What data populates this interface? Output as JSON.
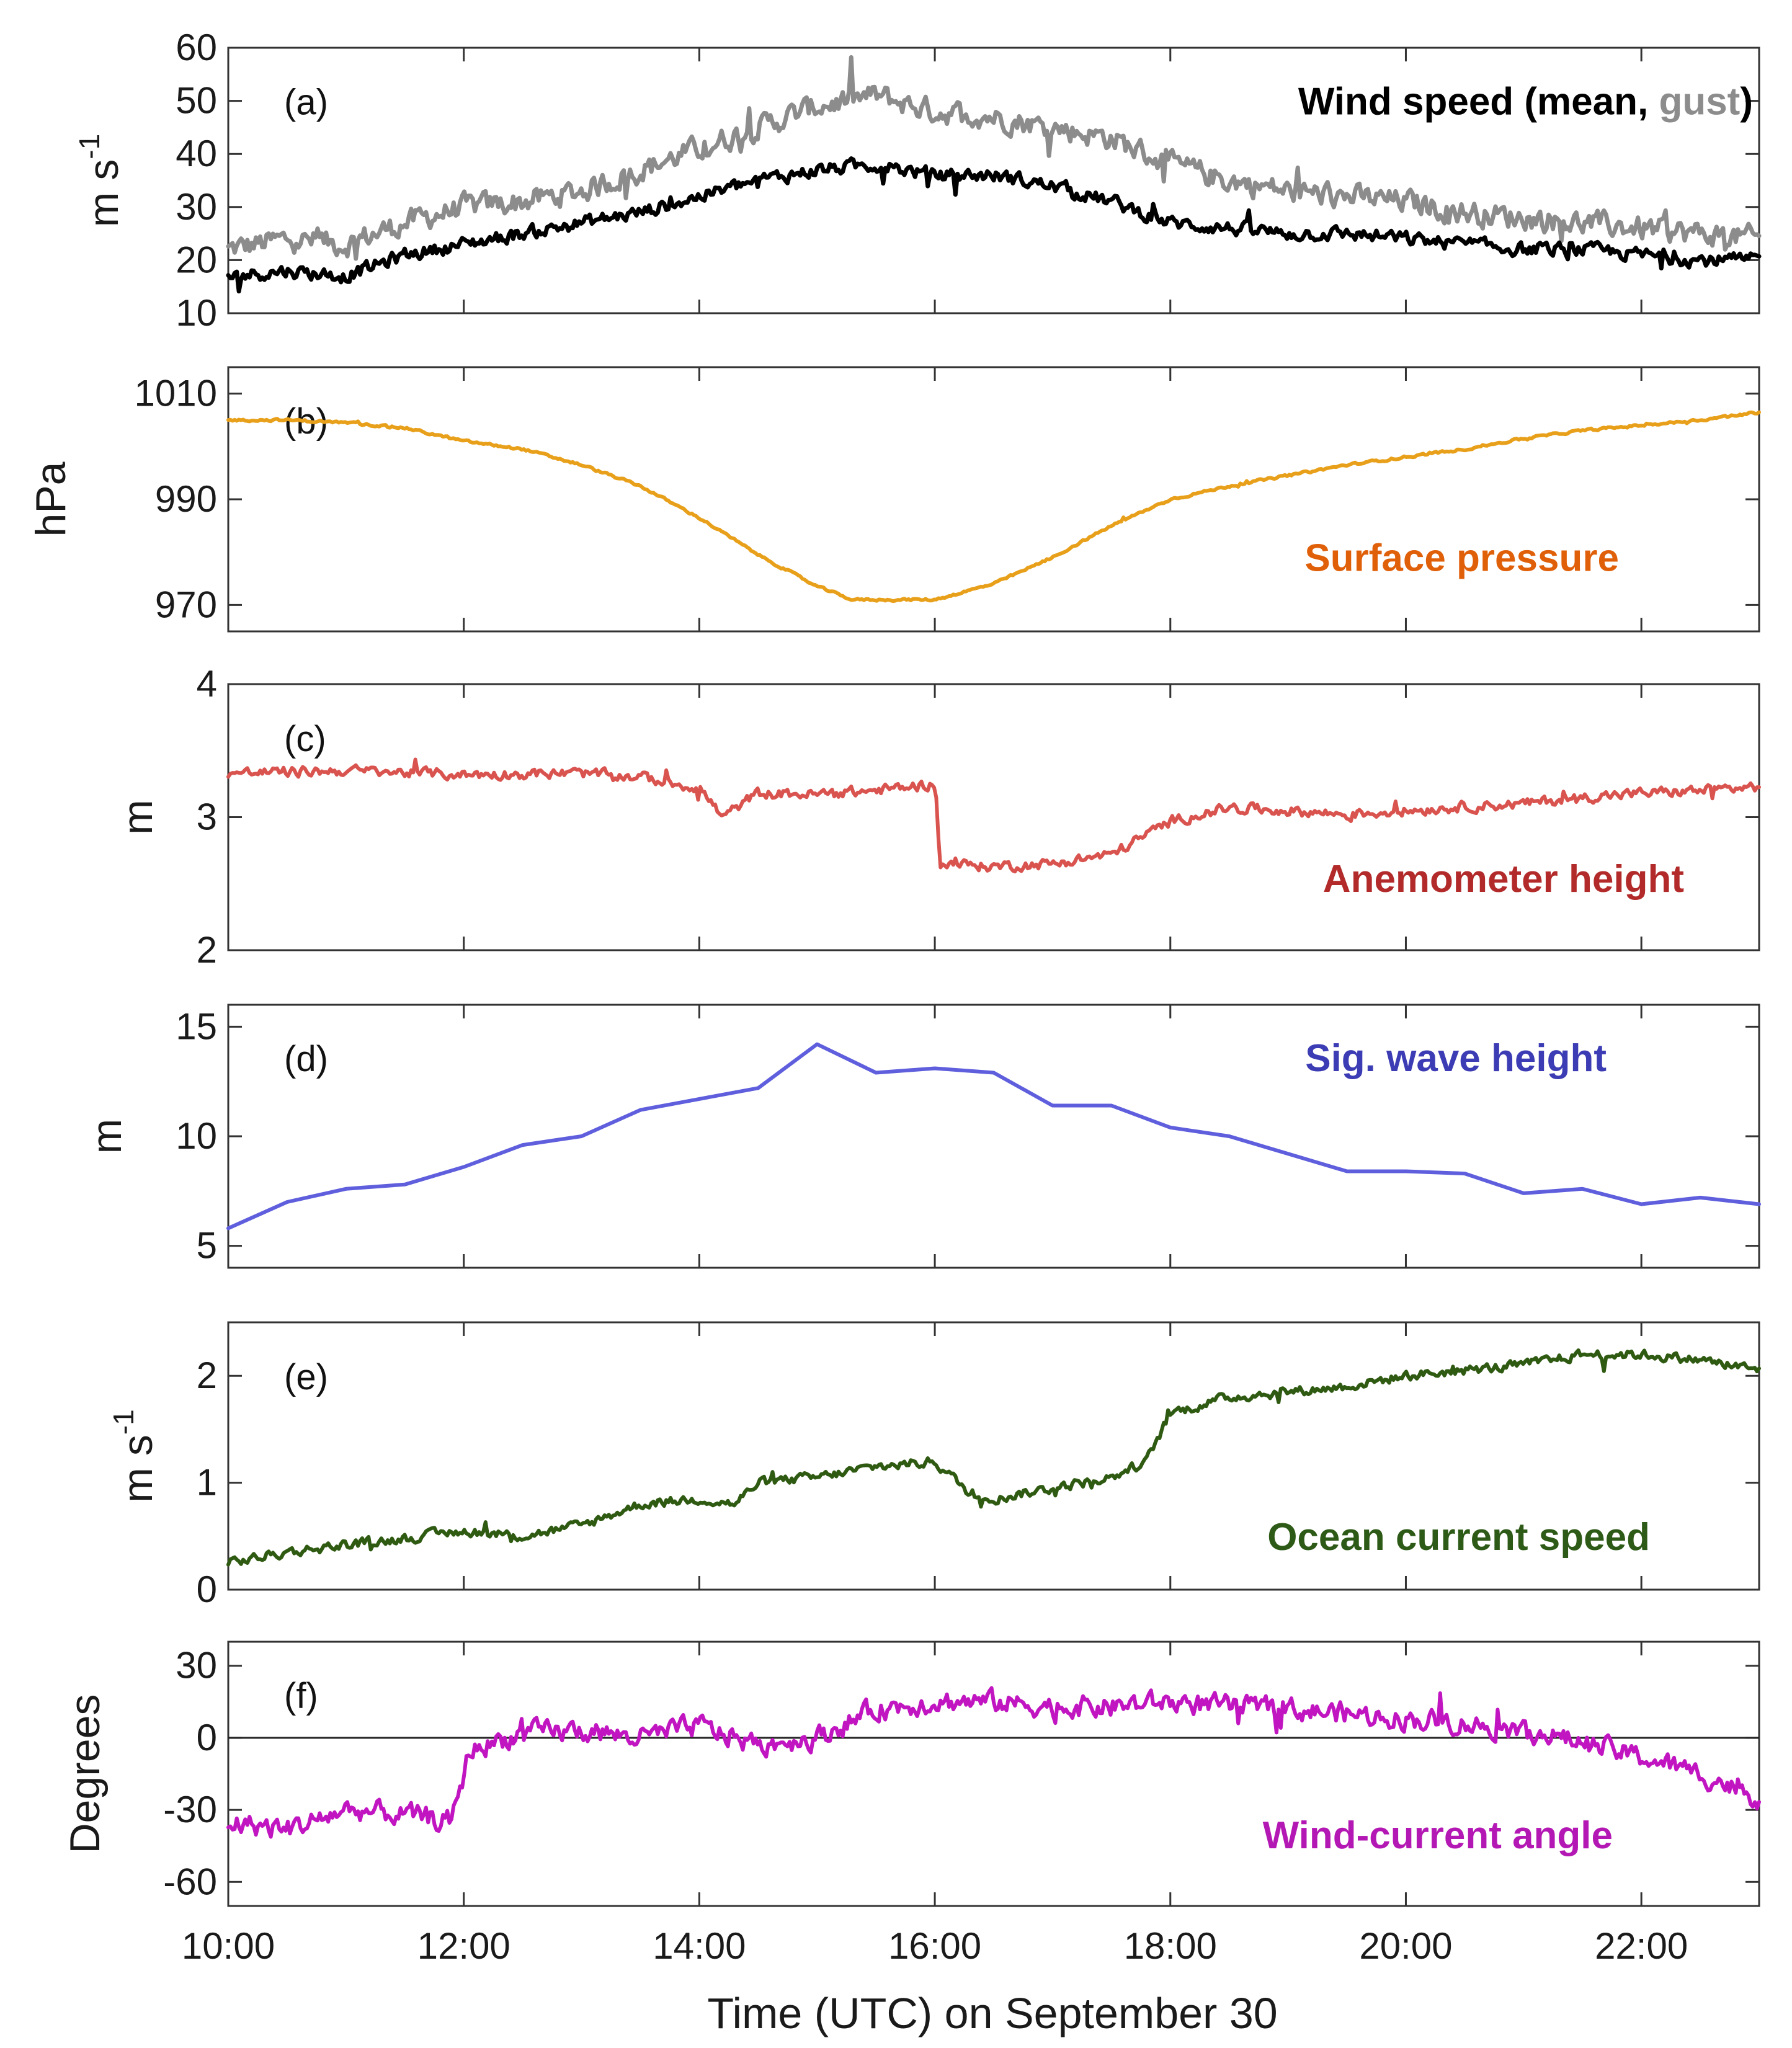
{
  "figure": {
    "xlabel": "Time (UTC) on September 30",
    "x_ticks": [
      "10:00",
      "12:00",
      "14:00",
      "16:00",
      "18:00",
      "20:00",
      "22:00"
    ],
    "x_tick_hours": [
      10,
      12,
      14,
      16,
      18,
      20,
      22
    ],
    "x_range_hours": [
      10,
      23
    ]
  },
  "chart_data": [
    {
      "type": "line",
      "panel": "(a)",
      "title_parts": [
        "Wind speed (mean,",
        "gust",
        ")"
      ],
      "title_colors": [
        "#000000",
        "#8c8c8c",
        "#000000"
      ],
      "ylabel": "m s",
      "ylabel_sup": "-1",
      "ylim": [
        10,
        60
      ],
      "yticks": [
        10,
        20,
        30,
        40,
        50,
        60
      ],
      "x": [
        10.0,
        10.5,
        11.0,
        11.5,
        12.0,
        12.5,
        13.0,
        13.5,
        14.0,
        14.5,
        15.0,
        15.5,
        16.0,
        16.5,
        17.0,
        17.5,
        18.0,
        18.5,
        19.0,
        19.5,
        20.0,
        20.5,
        21.0,
        21.5,
        22.0,
        22.5,
        23.0
      ],
      "series": [
        {
          "name": "gust",
          "color": "#8c8c8c",
          "noise": 3.5,
          "values": [
            22,
            24,
            23,
            27,
            30,
            31,
            33,
            37,
            41,
            45,
            49,
            51,
            48,
            47,
            45,
            43,
            38,
            35,
            33,
            32,
            31,
            29,
            28,
            27,
            26,
            25,
            24
          ]
        },
        {
          "name": "mean",
          "color": "#000000",
          "noise": 2.0,
          "values": [
            17,
            18,
            17,
            21,
            23,
            25,
            27,
            29,
            32,
            35,
            37,
            38,
            36,
            36,
            34,
            31,
            27,
            26,
            25,
            25,
            24,
            23,
            22,
            22,
            21,
            20,
            20
          ]
        }
      ]
    },
    {
      "type": "line",
      "panel": "(b)",
      "title": "Surface pressure",
      "title_color": "#e0600a",
      "ylabel": "hPa",
      "ylim": [
        965,
        1015
      ],
      "yticks": [
        970,
        990,
        1010
      ],
      "x": [
        10.0,
        10.5,
        11.0,
        11.5,
        12.0,
        12.5,
        13.0,
        13.5,
        14.0,
        14.5,
        15.0,
        15.3,
        15.5,
        16.0,
        16.5,
        17.0,
        17.5,
        18.0,
        18.5,
        19.0,
        19.5,
        20.0,
        20.5,
        21.0,
        21.5,
        22.0,
        22.5,
        23.0
      ],
      "series": [
        {
          "name": "Surface pressure",
          "color": "#e8a01a",
          "noise": 0.35,
          "values": [
            1005,
            1005,
            1004.5,
            1003.5,
            1001,
            999.5,
            996.5,
            992.5,
            986.5,
            979.5,
            973.5,
            971,
            971,
            971,
            974,
            979,
            985,
            990,
            992.5,
            994.5,
            996.5,
            998,
            999.5,
            1001.5,
            1003,
            1004,
            1005,
            1006.5
          ]
        }
      ]
    },
    {
      "type": "line",
      "panel": "(c)",
      "title": "Anemometer height",
      "title_color": "#b22a2a",
      "ylabel": "m",
      "ylim": [
        2,
        4
      ],
      "yticks": [
        2,
        3,
        4
      ],
      "x": [
        10.0,
        11.0,
        12.0,
        13.0,
        13.5,
        14.0,
        14.2,
        14.5,
        15.0,
        15.5,
        16.0,
        16.05,
        16.5,
        17.0,
        17.5,
        18.0,
        18.5,
        19.0,
        19.5,
        20.0,
        20.5,
        21.0,
        21.5,
        22.0,
        22.5,
        23.0
      ],
      "series": [
        {
          "name": "Anemometer height",
          "color": "#d9534f",
          "noise": 0.06,
          "values": [
            3.33,
            3.35,
            3.32,
            3.33,
            3.3,
            3.22,
            3.0,
            3.18,
            3.17,
            3.2,
            3.25,
            2.65,
            2.63,
            2.65,
            2.72,
            2.97,
            3.07,
            3.05,
            3.02,
            3.05,
            3.08,
            3.1,
            3.15,
            3.18,
            3.2,
            3.23
          ]
        }
      ]
    },
    {
      "type": "line",
      "panel": "(d)",
      "title": "Sig. wave height",
      "title_color": "#3c3cb4",
      "ylabel": "m",
      "ylim": [
        4,
        16
      ],
      "yticks": [
        5,
        10,
        15
      ],
      "x": [
        10.0,
        10.5,
        11.0,
        11.5,
        12.0,
        12.5,
        13.0,
        13.5,
        14.0,
        14.5,
        15.0,
        15.5,
        16.0,
        16.5,
        17.0,
        17.5,
        18.0,
        18.5,
        19.0,
        19.5,
        20.0,
        20.5,
        21.0,
        21.5,
        22.0,
        22.5,
        23.0
      ],
      "series": [
        {
          "name": "Sig. wave height",
          "color": "#5f5fde",
          "noise": 0,
          "values": [
            5.8,
            7.0,
            7.6,
            7.8,
            8.6,
            9.6,
            10.0,
            11.2,
            11.7,
            12.2,
            14.2,
            12.9,
            13.1,
            12.9,
            11.4,
            11.4,
            10.4,
            10.0,
            9.2,
            8.4,
            8.4,
            8.3,
            7.4,
            7.6,
            6.9,
            7.2,
            6.9
          ]
        }
      ]
    },
    {
      "type": "line",
      "panel": "(e)",
      "title": "Ocean current speed",
      "title_color": "#2d5a16",
      "ylabel": "m s",
      "ylabel_sup": "-1",
      "ylim": [
        0,
        2.5
      ],
      "yticks": [
        0,
        1,
        2
      ],
      "x": [
        10.0,
        10.5,
        11.0,
        11.5,
        12.0,
        12.5,
        13.0,
        13.5,
        14.0,
        14.3,
        14.5,
        15.0,
        15.5,
        16.0,
        16.3,
        16.5,
        17.0,
        17.5,
        17.8,
        18.0,
        18.5,
        19.0,
        19.5,
        20.0,
        20.5,
        21.0,
        21.5,
        22.0,
        22.5,
        23.0
      ],
      "series": [
        {
          "name": "Ocean current speed",
          "color": "#2f5a12",
          "noise": 0.07,
          "values": [
            0.25,
            0.35,
            0.42,
            0.48,
            0.55,
            0.5,
            0.6,
            0.8,
            0.85,
            0.8,
            1.0,
            1.05,
            1.15,
            1.2,
            0.9,
            0.85,
            0.95,
            1.05,
            1.2,
            1.65,
            1.8,
            1.85,
            1.9,
            2.0,
            2.05,
            2.1,
            2.2,
            2.2,
            2.15,
            2.05
          ]
        }
      ]
    },
    {
      "type": "line",
      "panel": "(f)",
      "title": "Wind-current angle",
      "title_color": "#b418b4",
      "ylabel": "Degrees",
      "ylim": [
        -70,
        40
      ],
      "yticks": [
        -60,
        -30,
        0,
        30
      ],
      "zero_line": true,
      "x": [
        10.0,
        10.5,
        11.0,
        11.5,
        11.9,
        12.05,
        12.5,
        13.0,
        13.5,
        14.0,
        14.5,
        15.0,
        15.5,
        16.0,
        16.5,
        17.0,
        17.5,
        18.0,
        18.5,
        19.0,
        19.5,
        20.0,
        20.5,
        21.0,
        21.5,
        22.0,
        22.5,
        23.0
      ],
      "series": [
        {
          "name": "Wind-current angle",
          "color": "#c015c0",
          "noise": 7,
          "values": [
            -35,
            -38,
            -30,
            -32,
            -35,
            -5,
            2,
            3,
            0,
            5,
            -3,
            0,
            12,
            15,
            15,
            13,
            13,
            15,
            13,
            12,
            10,
            8,
            6,
            3,
            -2,
            -8,
            -15,
            -25
          ]
        }
      ]
    }
  ]
}
